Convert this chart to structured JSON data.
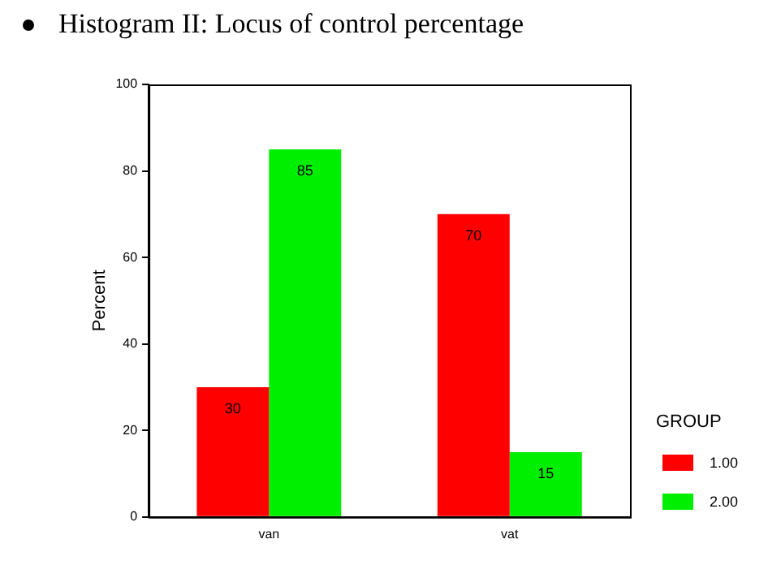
{
  "chart_data": {
    "type": "bar",
    "title": "Histogram II: Locus of control percentage",
    "ylabel": "Percent",
    "legend_title": "GROUP",
    "categories": [
      "van",
      "vat"
    ],
    "series": [
      {
        "name": "1.00",
        "color": "#ff0000",
        "values": [
          30,
          70
        ]
      },
      {
        "name": "2.00",
        "color": "#00ee00",
        "values": [
          85,
          15
        ]
      }
    ],
    "ylim": [
      0,
      100
    ],
    "yticks": [
      0,
      20,
      40,
      60,
      80,
      100
    ],
    "grid": false,
    "legend": "bottom right",
    "data_labels": true
  }
}
